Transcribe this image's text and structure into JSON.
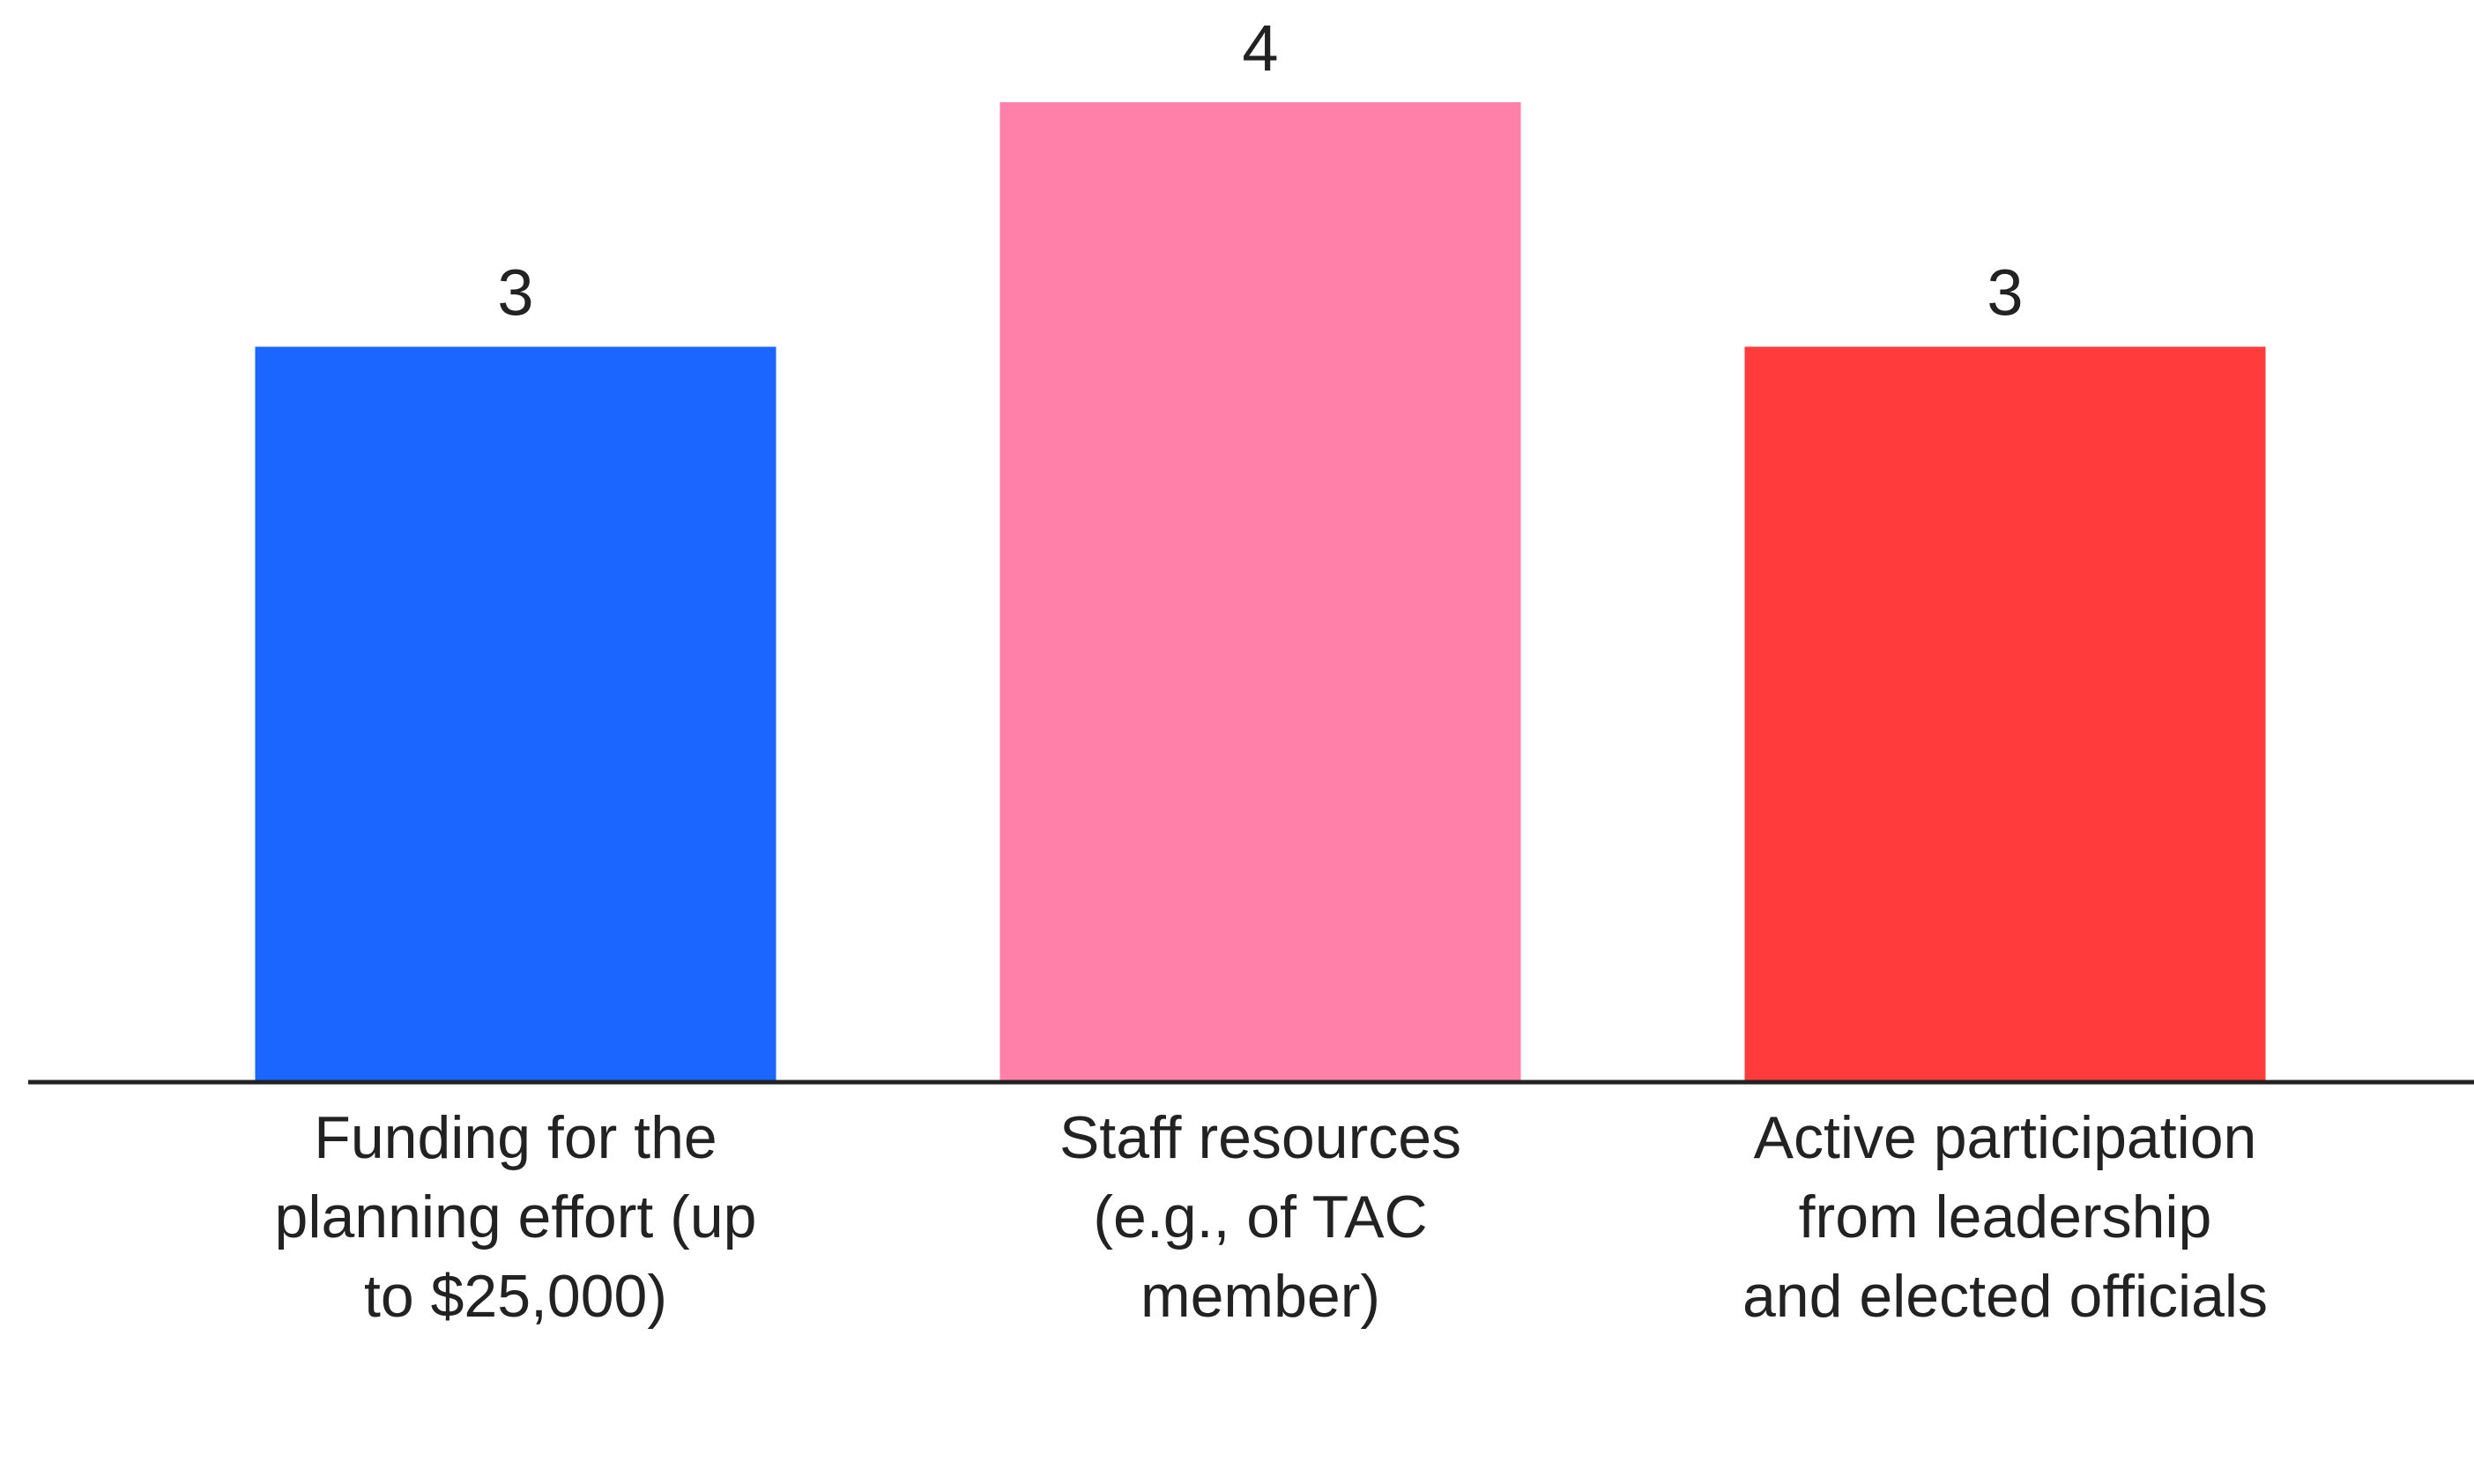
{
  "chart_data": {
    "type": "bar",
    "categories": [
      "Funding for the planning effort (up to $25,000)",
      "Staff resources (e.g., of TAC member)",
      "Active participation from leadership and elected officials"
    ],
    "values": [
      3,
      4,
      3
    ],
    "colors": [
      "#1a66ff",
      "#ff80a8",
      "#ff3b3b"
    ]
  }
}
